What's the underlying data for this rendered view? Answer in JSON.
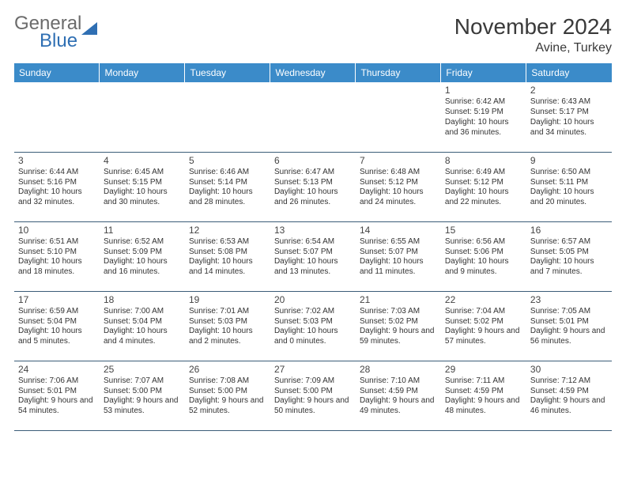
{
  "brand": {
    "word1": "General",
    "word2": "Blue",
    "shape_color": "#2f6fb3",
    "text1_color": "#6b6b6b"
  },
  "header": {
    "month_title": "November 2024",
    "location": "Avine, Turkey"
  },
  "calendar": {
    "day_headers": [
      "Sunday",
      "Monday",
      "Tuesday",
      "Wednesday",
      "Thursday",
      "Friday",
      "Saturday"
    ],
    "header_bg": "#3b8bc9",
    "header_fg": "#ffffff",
    "row_border_color": "#3b5d78",
    "text_color": "#333333",
    "fontsize_body": 10,
    "fontsize_daynum": 12,
    "first_weekday_index": 5,
    "days": [
      {
        "n": 1,
        "sunrise": "6:42 AM",
        "sunset": "5:19 PM",
        "daylight": "10 hours and 36 minutes."
      },
      {
        "n": 2,
        "sunrise": "6:43 AM",
        "sunset": "5:17 PM",
        "daylight": "10 hours and 34 minutes."
      },
      {
        "n": 3,
        "sunrise": "6:44 AM",
        "sunset": "5:16 PM",
        "daylight": "10 hours and 32 minutes."
      },
      {
        "n": 4,
        "sunrise": "6:45 AM",
        "sunset": "5:15 PM",
        "daylight": "10 hours and 30 minutes."
      },
      {
        "n": 5,
        "sunrise": "6:46 AM",
        "sunset": "5:14 PM",
        "daylight": "10 hours and 28 minutes."
      },
      {
        "n": 6,
        "sunrise": "6:47 AM",
        "sunset": "5:13 PM",
        "daylight": "10 hours and 26 minutes."
      },
      {
        "n": 7,
        "sunrise": "6:48 AM",
        "sunset": "5:12 PM",
        "daylight": "10 hours and 24 minutes."
      },
      {
        "n": 8,
        "sunrise": "6:49 AM",
        "sunset": "5:12 PM",
        "daylight": "10 hours and 22 minutes."
      },
      {
        "n": 9,
        "sunrise": "6:50 AM",
        "sunset": "5:11 PM",
        "daylight": "10 hours and 20 minutes."
      },
      {
        "n": 10,
        "sunrise": "6:51 AM",
        "sunset": "5:10 PM",
        "daylight": "10 hours and 18 minutes."
      },
      {
        "n": 11,
        "sunrise": "6:52 AM",
        "sunset": "5:09 PM",
        "daylight": "10 hours and 16 minutes."
      },
      {
        "n": 12,
        "sunrise": "6:53 AM",
        "sunset": "5:08 PM",
        "daylight": "10 hours and 14 minutes."
      },
      {
        "n": 13,
        "sunrise": "6:54 AM",
        "sunset": "5:07 PM",
        "daylight": "10 hours and 13 minutes."
      },
      {
        "n": 14,
        "sunrise": "6:55 AM",
        "sunset": "5:07 PM",
        "daylight": "10 hours and 11 minutes."
      },
      {
        "n": 15,
        "sunrise": "6:56 AM",
        "sunset": "5:06 PM",
        "daylight": "10 hours and 9 minutes."
      },
      {
        "n": 16,
        "sunrise": "6:57 AM",
        "sunset": "5:05 PM",
        "daylight": "10 hours and 7 minutes."
      },
      {
        "n": 17,
        "sunrise": "6:59 AM",
        "sunset": "5:04 PM",
        "daylight": "10 hours and 5 minutes."
      },
      {
        "n": 18,
        "sunrise": "7:00 AM",
        "sunset": "5:04 PM",
        "daylight": "10 hours and 4 minutes."
      },
      {
        "n": 19,
        "sunrise": "7:01 AM",
        "sunset": "5:03 PM",
        "daylight": "10 hours and 2 minutes."
      },
      {
        "n": 20,
        "sunrise": "7:02 AM",
        "sunset": "5:03 PM",
        "daylight": "10 hours and 0 minutes."
      },
      {
        "n": 21,
        "sunrise": "7:03 AM",
        "sunset": "5:02 PM",
        "daylight": "9 hours and 59 minutes."
      },
      {
        "n": 22,
        "sunrise": "7:04 AM",
        "sunset": "5:02 PM",
        "daylight": "9 hours and 57 minutes."
      },
      {
        "n": 23,
        "sunrise": "7:05 AM",
        "sunset": "5:01 PM",
        "daylight": "9 hours and 56 minutes."
      },
      {
        "n": 24,
        "sunrise": "7:06 AM",
        "sunset": "5:01 PM",
        "daylight": "9 hours and 54 minutes."
      },
      {
        "n": 25,
        "sunrise": "7:07 AM",
        "sunset": "5:00 PM",
        "daylight": "9 hours and 53 minutes."
      },
      {
        "n": 26,
        "sunrise": "7:08 AM",
        "sunset": "5:00 PM",
        "daylight": "9 hours and 52 minutes."
      },
      {
        "n": 27,
        "sunrise": "7:09 AM",
        "sunset": "5:00 PM",
        "daylight": "9 hours and 50 minutes."
      },
      {
        "n": 28,
        "sunrise": "7:10 AM",
        "sunset": "4:59 PM",
        "daylight": "9 hours and 49 minutes."
      },
      {
        "n": 29,
        "sunrise": "7:11 AM",
        "sunset": "4:59 PM",
        "daylight": "9 hours and 48 minutes."
      },
      {
        "n": 30,
        "sunrise": "7:12 AM",
        "sunset": "4:59 PM",
        "daylight": "9 hours and 46 minutes."
      }
    ],
    "labels": {
      "sunrise": "Sunrise:",
      "sunset": "Sunset:",
      "daylight": "Daylight:"
    }
  }
}
